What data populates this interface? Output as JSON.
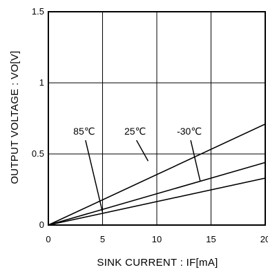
{
  "chart_data": {
    "type": "line",
    "title": "",
    "xlabel": "SINK CURRENT : IF[mA]",
    "ylabel": "OUTPUT VOLTAGE : VO[V]",
    "xlim": [
      0,
      20
    ],
    "ylim": [
      0,
      1.5
    ],
    "grid": true,
    "x_ticks": [
      {
        "value": 0,
        "label": "0"
      },
      {
        "value": 5,
        "label": "5"
      },
      {
        "value": 10,
        "label": "10"
      },
      {
        "value": 15,
        "label": "15"
      },
      {
        "value": 20,
        "label": "20"
      }
    ],
    "y_ticks": [
      {
        "value": 0,
        "label": "0"
      },
      {
        "value": 0.5,
        "label": "0.5"
      },
      {
        "value": 1,
        "label": "1"
      },
      {
        "value": 1.5,
        "label": "1.5"
      }
    ],
    "series": [
      {
        "name": "85℃",
        "x": [
          0,
          20
        ],
        "y": [
          0,
          0.71
        ]
      },
      {
        "name": "25℃",
        "x": [
          0,
          20
        ],
        "y": [
          0,
          0.44
        ]
      },
      {
        "name": "-30℃",
        "x": [
          0,
          20
        ],
        "y": [
          0,
          0.33
        ]
      }
    ],
    "annotations": [
      {
        "text": "85℃",
        "series": 0,
        "label_x": 3.3,
        "label_y": 0.635,
        "point_x": 5.0,
        "point_y": 0.09
      },
      {
        "text": "25℃",
        "series": 1,
        "label_x": 8.0,
        "label_y": 0.635,
        "point_x": 9.2,
        "point_y": 0.45
      },
      {
        "text": "-30℃",
        "series": 2,
        "label_x": 13.0,
        "label_y": 0.635,
        "point_x": 14.0,
        "point_y": 0.31
      }
    ]
  }
}
